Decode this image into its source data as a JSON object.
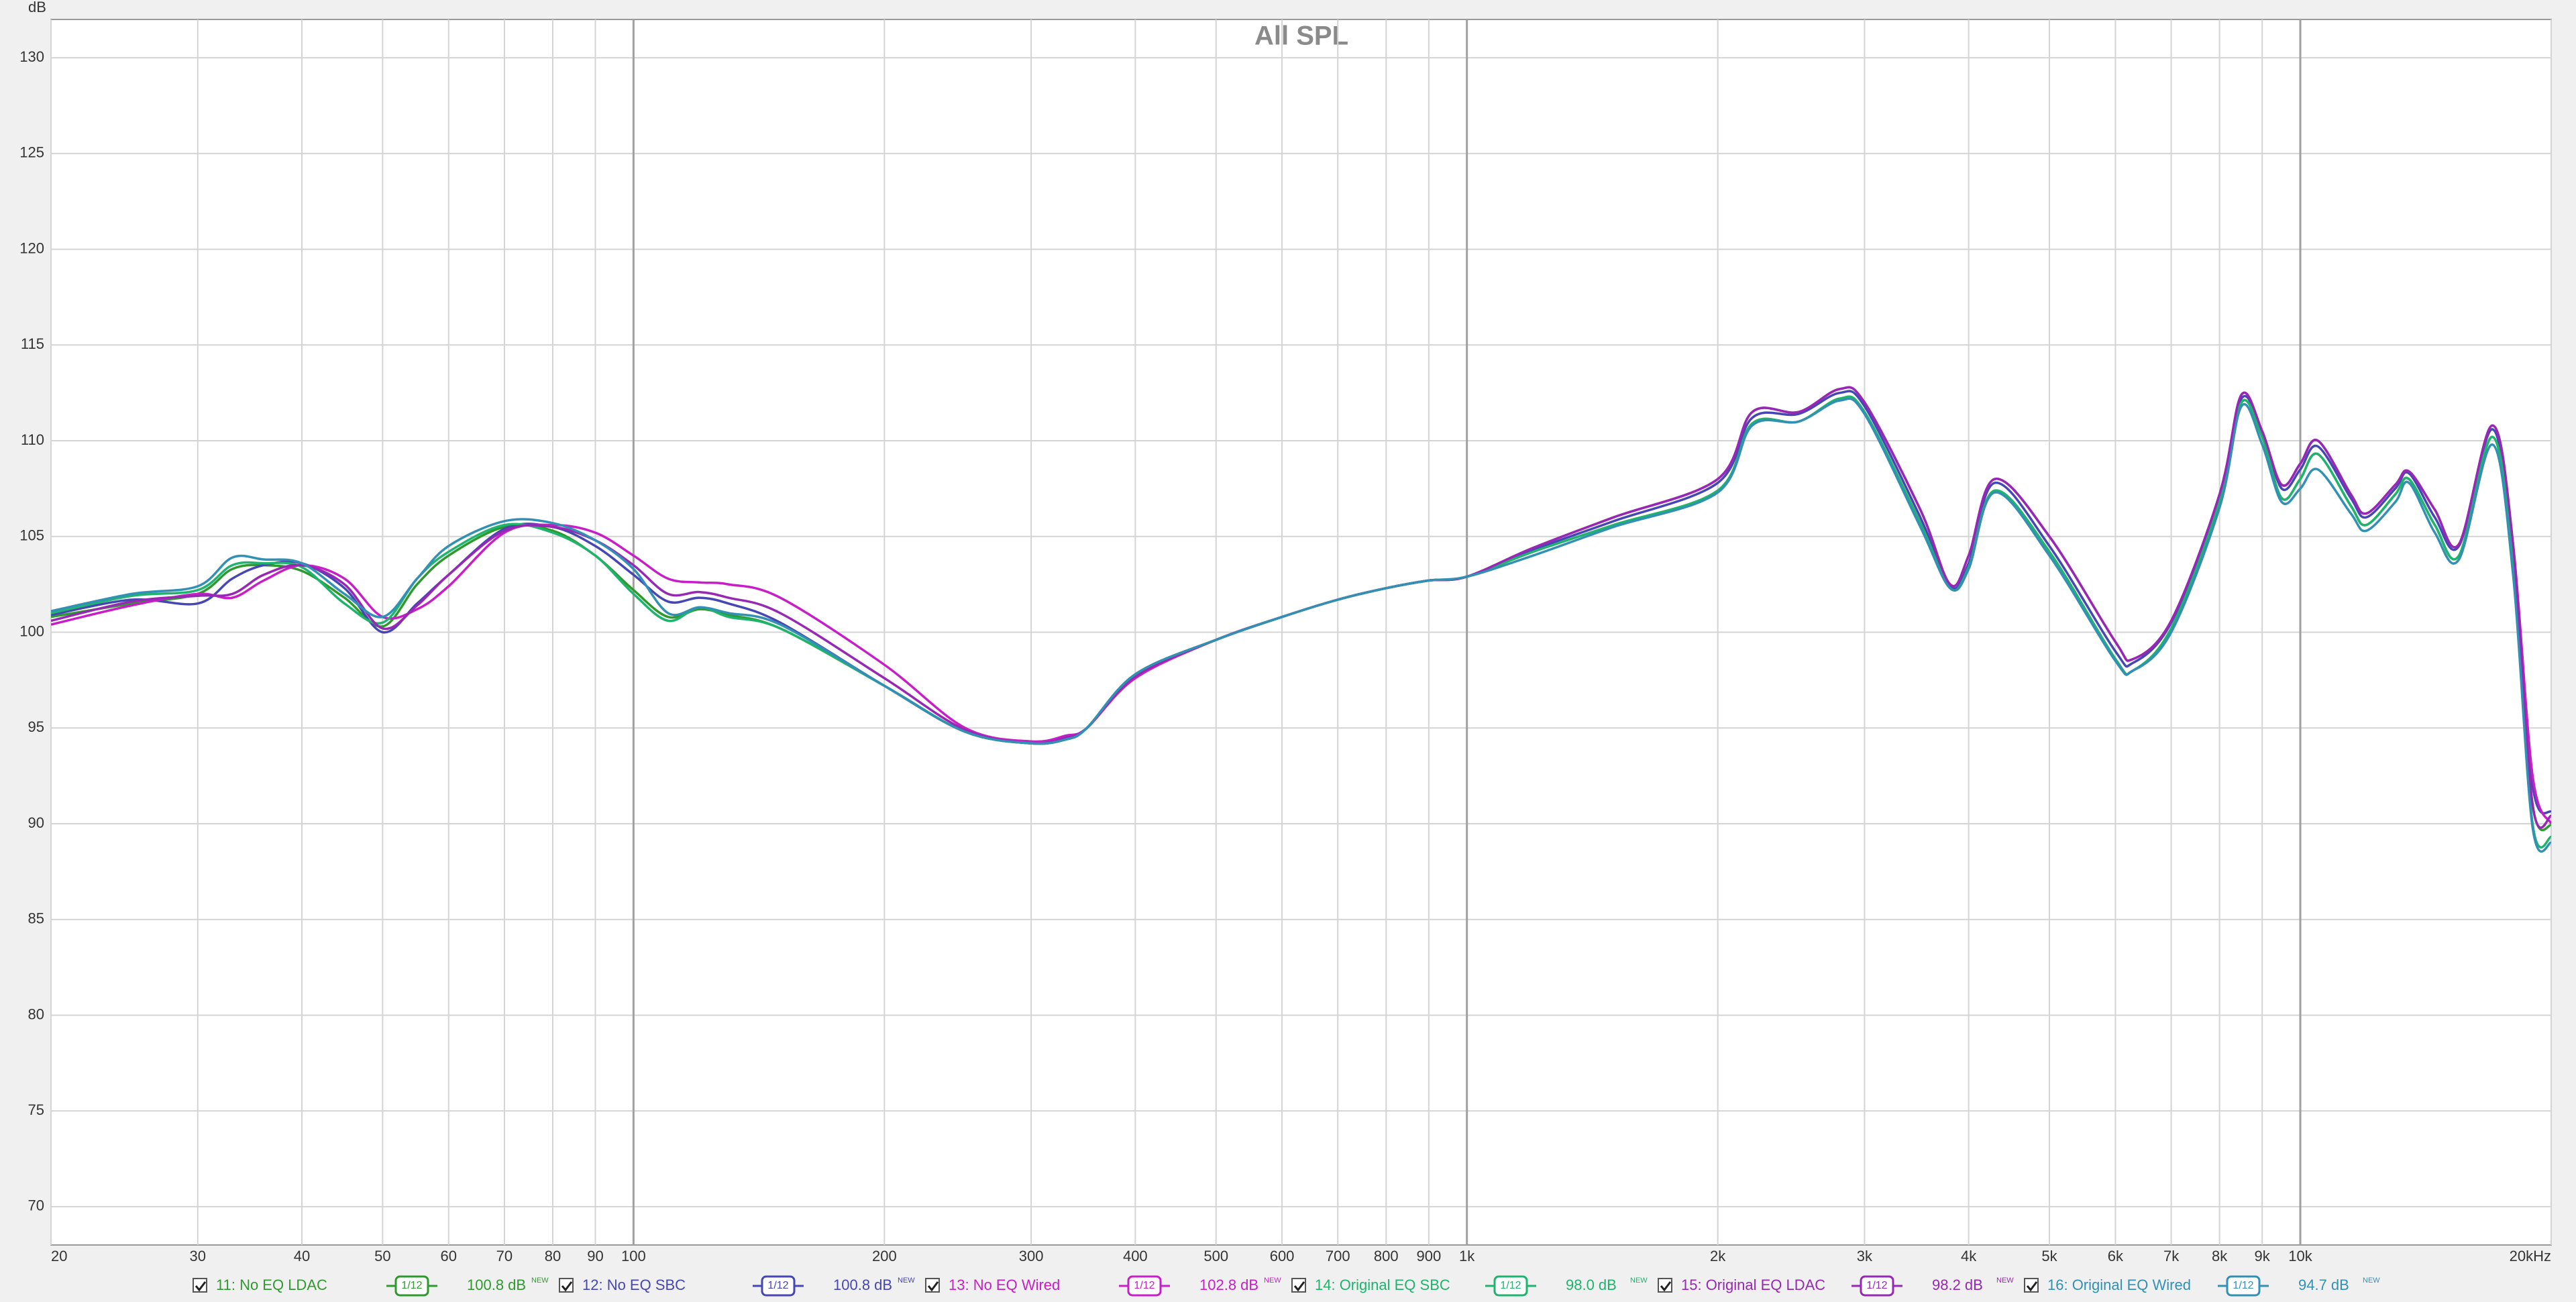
{
  "chart_data": {
    "type": "line",
    "title": "All SPL",
    "y_label": "dB",
    "xscale": "log",
    "grid": true,
    "xlim": [
      20,
      20000
    ],
    "ylim": [
      68,
      132
    ],
    "xticks": [
      20,
      30,
      40,
      50,
      60,
      70,
      80,
      90,
      100,
      200,
      300,
      400,
      500,
      600,
      700,
      800,
      900,
      {
        "value": 1000,
        "label": "1k"
      },
      {
        "value": 2000,
        "label": "2k"
      },
      {
        "value": 3000,
        "label": "3k"
      },
      {
        "value": 4000,
        "label": "4k"
      },
      {
        "value": 5000,
        "label": "5k"
      },
      {
        "value": 6000,
        "label": "6k"
      },
      {
        "value": 7000,
        "label": "7k"
      },
      {
        "value": 8000,
        "label": "8k"
      },
      {
        "value": 9000,
        "label": "9k"
      },
      {
        "value": 10000,
        "label": "10k"
      },
      {
        "value": 20000,
        "label": "20kHz"
      }
    ],
    "yticks": [
      70,
      75,
      80,
      85,
      90,
      95,
      100,
      105,
      110,
      115,
      120,
      125,
      130
    ],
    "x": [
      20,
      25,
      30,
      33,
      36,
      40,
      45,
      50,
      55,
      60,
      70,
      80,
      90,
      100,
      110,
      120,
      130,
      150,
      200,
      250,
      300,
      330,
      350,
      400,
      500,
      600,
      700,
      800,
      900,
      1000,
      1200,
      1500,
      2000,
      2200,
      2500,
      2800,
      3000,
      3500,
      3800,
      4000,
      4300,
      5000,
      6000,
      6300,
      7000,
      8000,
      8500,
      9000,
      9500,
      10000,
      10500,
      11500,
      12000,
      13000,
      13500,
      14500,
      15500,
      17000,
      18000,
      19000,
      20000
    ],
    "series": [
      {
        "name": "11: No EQ LDAC",
        "color": "#2e9a2e",
        "smoothing": "1/12",
        "level_label": "100.8 dB",
        "badge": "NEW",
        "values": [
          100.8,
          101.5,
          102.0,
          103.3,
          103.5,
          103.2,
          101.8,
          100.3,
          102.5,
          104.0,
          105.5,
          105.3,
          104.0,
          102.2,
          100.8,
          101.2,
          100.9,
          100.2,
          97.2,
          94.8,
          94.2,
          94.4,
          95.0,
          97.8,
          99.6,
          100.8,
          101.7,
          102.3,
          102.7,
          102.9,
          104.2,
          105.6,
          107.4,
          110.9,
          111.0,
          112.2,
          111.5,
          105.7,
          102.3,
          103.4,
          107.4,
          104.2,
          98.6,
          98.0,
          100.2,
          106.8,
          112.0,
          110.2,
          107.0,
          108.0,
          109.3,
          106.6,
          105.6,
          107.2,
          108.0,
          105.6,
          104.0,
          110.2,
          103.5,
          91.0,
          89.9
        ]
      },
      {
        "name": "12: No EQ SBC",
        "color": "#4646b4",
        "smoothing": "1/12",
        "level_label": "100.8 dB",
        "badge": "NEW",
        "values": [
          100.9,
          101.7,
          101.5,
          102.8,
          103.5,
          103.6,
          102.3,
          100.0,
          101.5,
          103.0,
          105.4,
          105.5,
          104.5,
          103.0,
          101.6,
          101.8,
          101.5,
          100.5,
          97.2,
          94.8,
          94.2,
          94.4,
          95.0,
          97.8,
          99.6,
          100.8,
          101.7,
          102.3,
          102.7,
          102.9,
          104.3,
          105.8,
          107.8,
          111.2,
          111.4,
          112.5,
          111.8,
          106.0,
          102.4,
          103.6,
          107.8,
          104.5,
          99.0,
          98.4,
          100.5,
          107.0,
          112.2,
          110.5,
          107.5,
          108.5,
          109.7,
          107.0,
          106.0,
          107.5,
          108.3,
          106.0,
          104.5,
          110.6,
          104.0,
          92.0,
          90.6
        ]
      },
      {
        "name": "13: No EQ Wired",
        "color": "#c81ec8",
        "smoothing": "1/12",
        "level_label": "102.8 dB",
        "badge": "NEW",
        "values": [
          100.4,
          101.4,
          102.0,
          101.8,
          102.7,
          103.5,
          102.8,
          100.8,
          101.2,
          102.4,
          105.2,
          105.6,
          105.2,
          104.0,
          102.8,
          102.6,
          102.5,
          101.8,
          98.3,
          95.0,
          94.3,
          94.6,
          95.0,
          97.6,
          99.6,
          100.8,
          101.7,
          102.3,
          102.7,
          102.9,
          104.4,
          106.0,
          108.0,
          111.5,
          111.5,
          112.7,
          112.0,
          106.4,
          102.5,
          104.0,
          108.0,
          105.0,
          99.5,
          98.6,
          100.6,
          107.2,
          112.4,
          110.5,
          107.7,
          108.8,
          110.0,
          107.2,
          106.2,
          107.7,
          108.4,
          106.4,
          104.6,
          110.8,
          104.6,
          92.5,
          90.0
        ]
      },
      {
        "name": "14: Original EQ SBC",
        "color": "#1eb46e",
        "smoothing": "1/12",
        "level_label": "98.0 dB",
        "badge": "NEW",
        "values": [
          101.0,
          101.9,
          102.2,
          103.5,
          103.6,
          103.4,
          101.5,
          100.5,
          102.8,
          104.2,
          105.6,
          105.2,
          104.0,
          102.0,
          100.6,
          101.3,
          100.8,
          100.2,
          97.2,
          94.8,
          94.2,
          94.4,
          95.0,
          97.8,
          99.6,
          100.8,
          101.7,
          102.3,
          102.7,
          102.9,
          104.2,
          105.6,
          107.4,
          110.9,
          111.0,
          112.2,
          111.5,
          105.7,
          102.3,
          103.4,
          107.4,
          104.2,
          98.6,
          98.0,
          100.2,
          106.8,
          112.0,
          110.2,
          107.0,
          108.0,
          109.3,
          106.6,
          105.6,
          107.2,
          108.0,
          105.6,
          104.0,
          110.2,
          103.5,
          90.0,
          89.3
        ]
      },
      {
        "name": "15: Original EQ LDAC",
        "color": "#9628b4",
        "smoothing": "1/12",
        "level_label": "98.2 dB",
        "badge": "NEW",
        "values": [
          100.6,
          101.6,
          101.9,
          102.0,
          103.0,
          103.5,
          102.5,
          100.2,
          101.4,
          103.0,
          105.3,
          105.5,
          104.8,
          103.5,
          102.0,
          102.1,
          101.8,
          101.0,
          97.6,
          94.9,
          94.2,
          94.5,
          95.0,
          97.7,
          99.6,
          100.8,
          101.7,
          102.3,
          102.7,
          102.9,
          104.4,
          106.0,
          108.0,
          111.5,
          111.5,
          112.7,
          112.0,
          106.4,
          102.5,
          104.0,
          108.0,
          105.0,
          99.5,
          98.6,
          100.6,
          107.2,
          112.4,
          110.5,
          107.7,
          108.8,
          110.0,
          107.2,
          106.2,
          107.7,
          108.4,
          106.4,
          104.6,
          110.8,
          104.6,
          91.0,
          90.4
        ]
      },
      {
        "name": "16: Original EQ Wired",
        "color": "#3290b4",
        "smoothing": "1/12",
        "level_label": "94.7 dB",
        "badge": "NEW",
        "values": [
          101.1,
          102.0,
          102.4,
          103.9,
          103.8,
          103.6,
          102.0,
          100.8,
          102.8,
          104.5,
          105.8,
          105.7,
          104.8,
          103.3,
          101.0,
          101.3,
          101.0,
          100.4,
          97.2,
          94.8,
          94.2,
          94.4,
          95.0,
          97.8,
          99.6,
          100.8,
          101.7,
          102.3,
          102.7,
          102.9,
          104.0,
          105.5,
          107.3,
          110.8,
          111.0,
          112.1,
          111.4,
          105.5,
          102.3,
          103.3,
          107.3,
          104.0,
          98.5,
          98.0,
          100.0,
          106.5,
          111.8,
          109.8,
          106.8,
          107.5,
          108.5,
          106.2,
          105.3,
          106.8,
          107.8,
          105.2,
          103.8,
          109.8,
          103.0,
          89.8,
          89.0
        ]
      }
    ]
  }
}
